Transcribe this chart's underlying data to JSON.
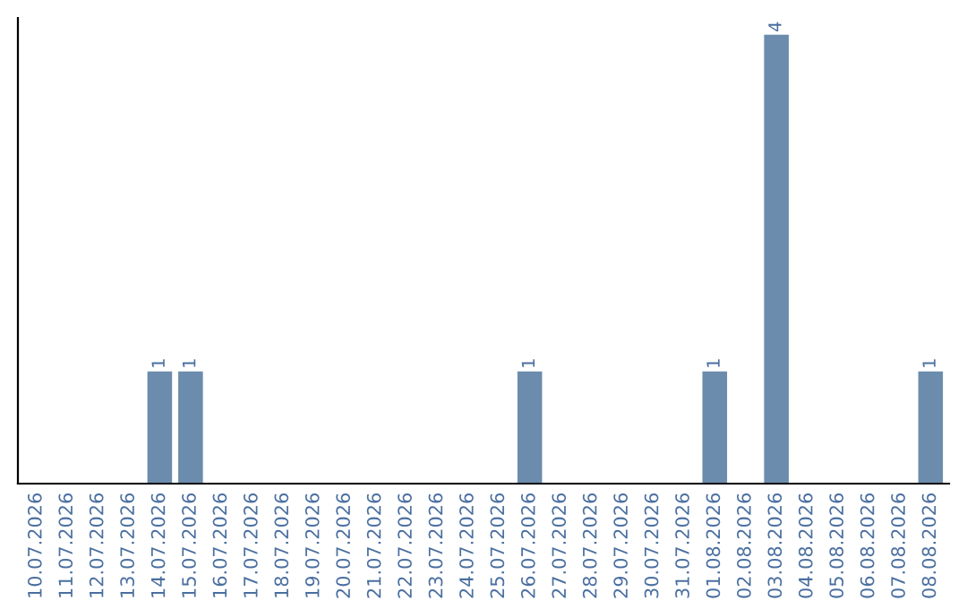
{
  "chart_data": {
    "type": "bar",
    "categories": [
      "10.07.2026",
      "11.07.2026",
      "12.07.2026",
      "13.07.2026",
      "14.07.2026",
      "15.07.2026",
      "16.07.2026",
      "17.07.2026",
      "18.07.2026",
      "19.07.2026",
      "20.07.2026",
      "21.07.2026",
      "22.07.2026",
      "23.07.2026",
      "24.07.2026",
      "25.07.2026",
      "26.07.2026",
      "27.07.2026",
      "28.07.2026",
      "29.07.2026",
      "30.07.2026",
      "31.07.2026",
      "01.08.2026",
      "02.08.2026",
      "03.08.2026",
      "04.08.2026",
      "05.08.2026",
      "06.08.2026",
      "07.08.2026",
      "08.08.2026"
    ],
    "values": [
      0,
      0,
      0,
      0,
      1,
      1,
      0,
      0,
      0,
      0,
      0,
      0,
      0,
      0,
      0,
      0,
      1,
      0,
      0,
      0,
      0,
      0,
      1,
      0,
      4,
      0,
      0,
      0,
      0,
      1
    ],
    "value_labels": [
      null,
      null,
      null,
      null,
      "1",
      "1",
      null,
      null,
      null,
      null,
      null,
      null,
      null,
      null,
      null,
      null,
      "1",
      null,
      null,
      null,
      null,
      null,
      "1",
      null,
      "4",
      null,
      null,
      null,
      null,
      "1"
    ],
    "color": "#6b8cac",
    "ylim": [
      0,
      4.15
    ],
    "tick_labels": "x",
    "grid": false,
    "legend": false
  }
}
